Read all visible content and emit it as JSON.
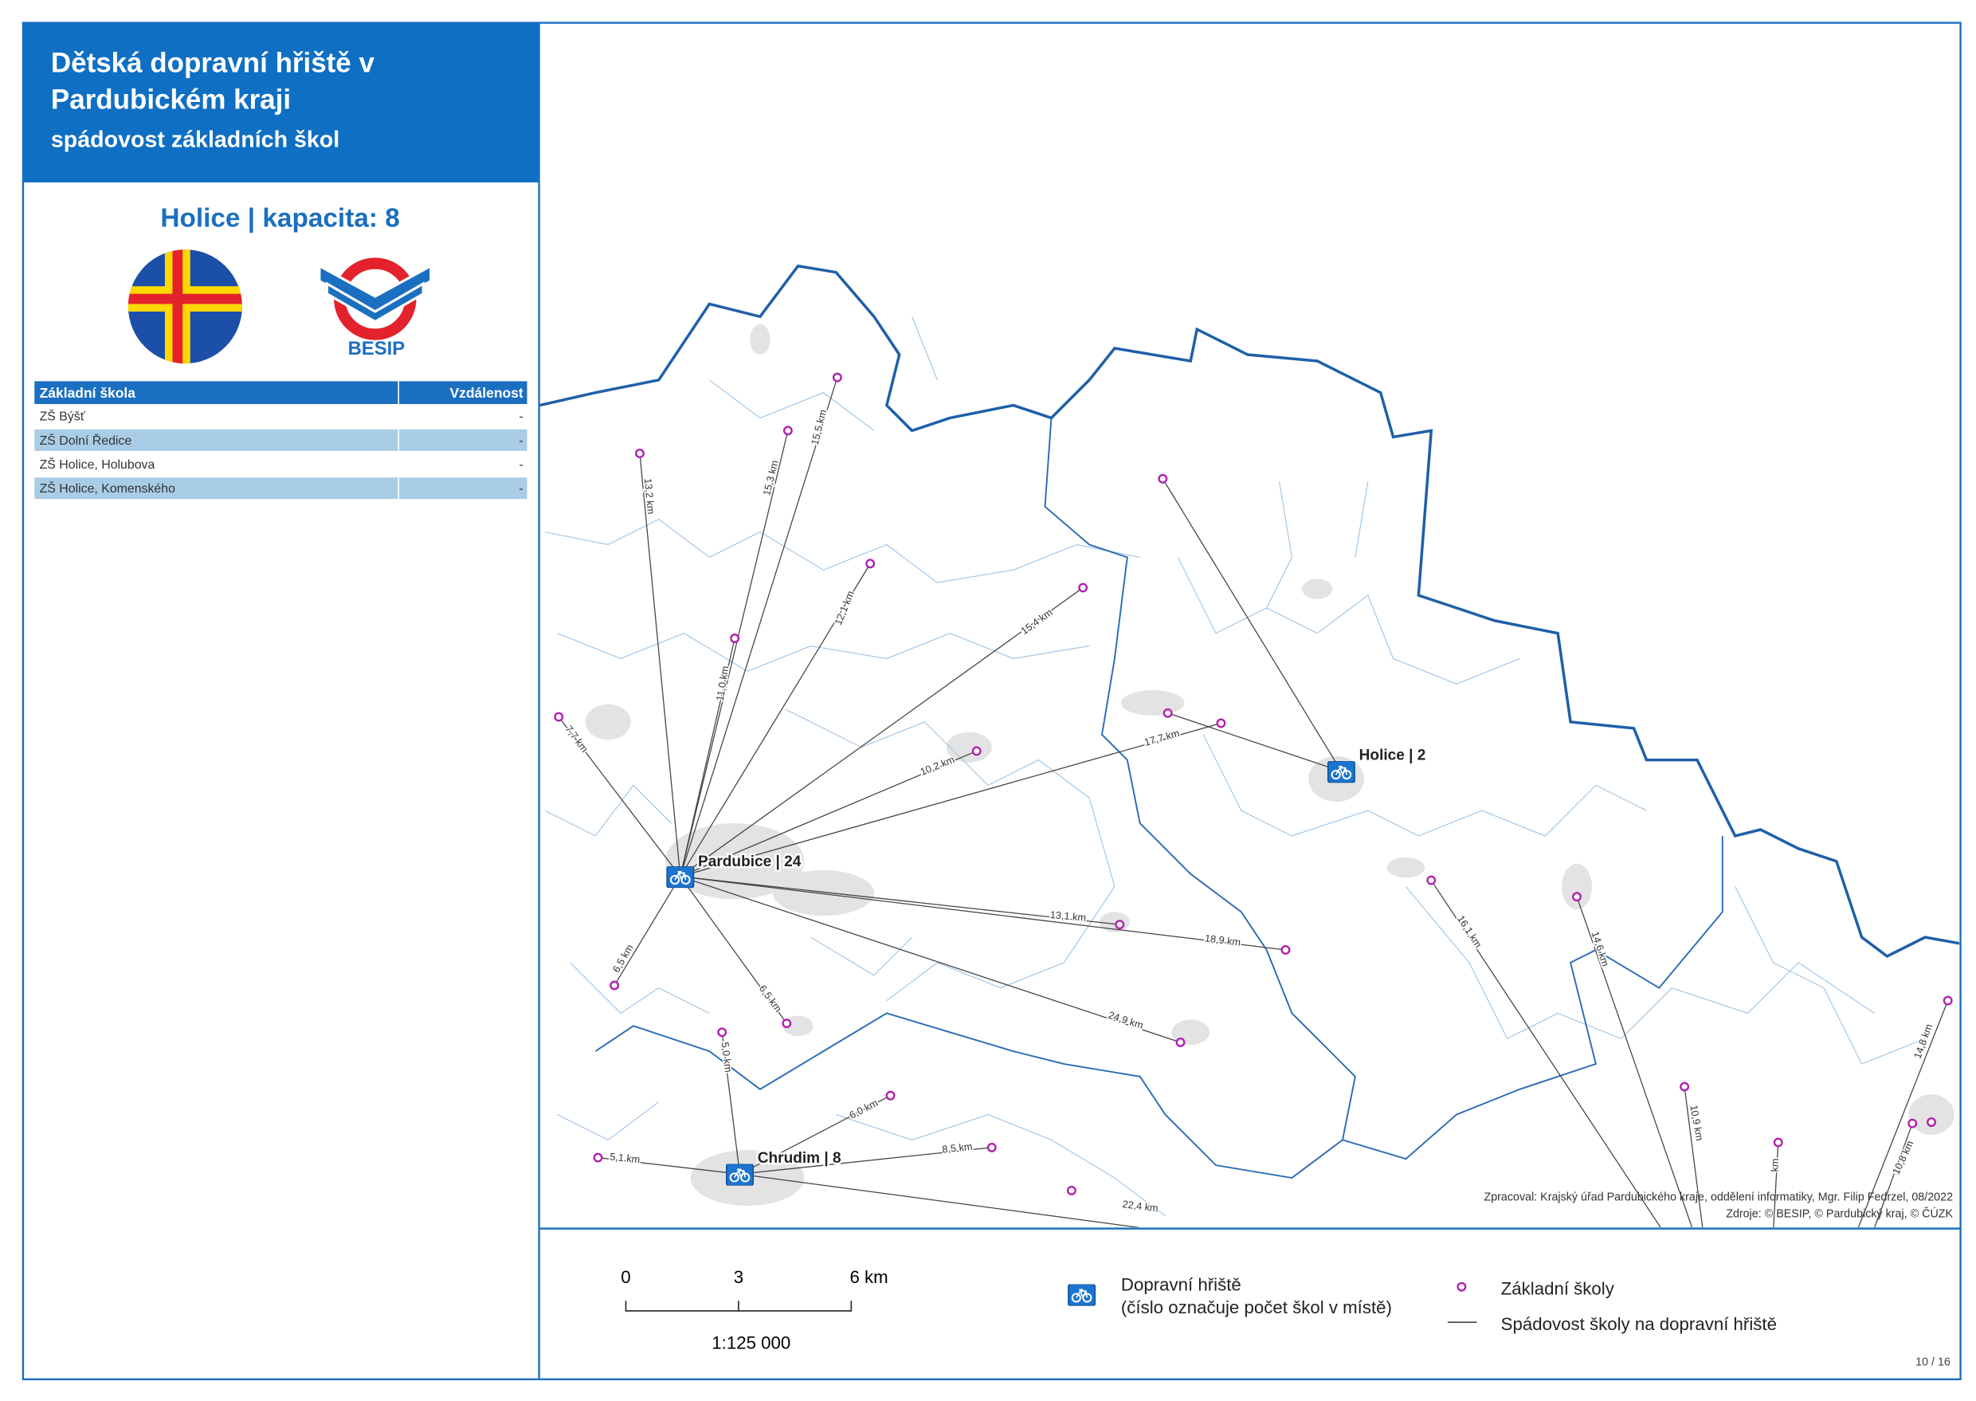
{
  "header": {
    "title_line1": "Dětská dopravní hřiště v",
    "title_line2": "Pardubickém kraji",
    "subtitle": "spádovost základních škol"
  },
  "panel": {
    "heading": "Holice | kapacita: 8",
    "logo_text": "BESIP"
  },
  "table": {
    "columns": [
      "Základní škola",
      "Vzdálenost"
    ],
    "rows": [
      [
        "ZŠ Býšť",
        "-"
      ],
      [
        "ZŠ Dolní Ředice",
        "-"
      ],
      [
        "ZŠ Holice, Holubova",
        "-"
      ],
      [
        "ZŠ Holice, Komenského",
        "-"
      ]
    ]
  },
  "map": {
    "places": [
      {
        "label": "Pardubice | 24"
      },
      {
        "label": "Holice | 2"
      },
      {
        "label": "Chrudim | 8"
      }
    ],
    "links": [
      {
        "label": "13,2 km"
      },
      {
        "label": "15,3 km"
      },
      {
        "label": "15,5 km"
      },
      {
        "label": "12,1 km"
      },
      {
        "label": "11,0 km"
      },
      {
        "label": "15,4 km"
      },
      {
        "label": "7,7 km"
      },
      {
        "label": "10,2 km"
      },
      {
        "label": "17,7 km"
      },
      {
        "label": "13,1 km"
      },
      {
        "label": "18,9 km"
      },
      {
        "label": "24,9 km"
      },
      {
        "label": "6,5 km"
      },
      {
        "label": "6,5 km"
      },
      {
        "label": "5,0 km"
      },
      {
        "label": "6,0 km"
      },
      {
        "label": "8,5 km"
      },
      {
        "label": "5,1 km"
      },
      {
        "label": "22,4 km"
      },
      {
        "label": "16,1 km"
      },
      {
        "label": "14,6 km"
      },
      {
        "label": "10,9 km"
      },
      {
        "label": "km"
      },
      {
        "label": "14,8 km"
      },
      {
        "label": "10,8 km"
      }
    ],
    "credits": [
      "Zpracoval: Krajský úřad Pardubického kraje, oddělení informatiky, Mgr. Filip Fedrzel, 08/2022",
      "Zdroje: © BESIP, © Pardubický kraj, © ČÚZK"
    ]
  },
  "legend": {
    "scale_labels": [
      "0",
      "3",
      "6 km"
    ],
    "scale_ratio": "1:125 000",
    "playground": "Dopravní hřiště",
    "playground_note": "(číslo označuje počet škol v místě)",
    "school": "Základní školy",
    "catchment": "Spádovost školy na dopravní hřiště"
  },
  "footer": {
    "page": "10 / 16"
  }
}
